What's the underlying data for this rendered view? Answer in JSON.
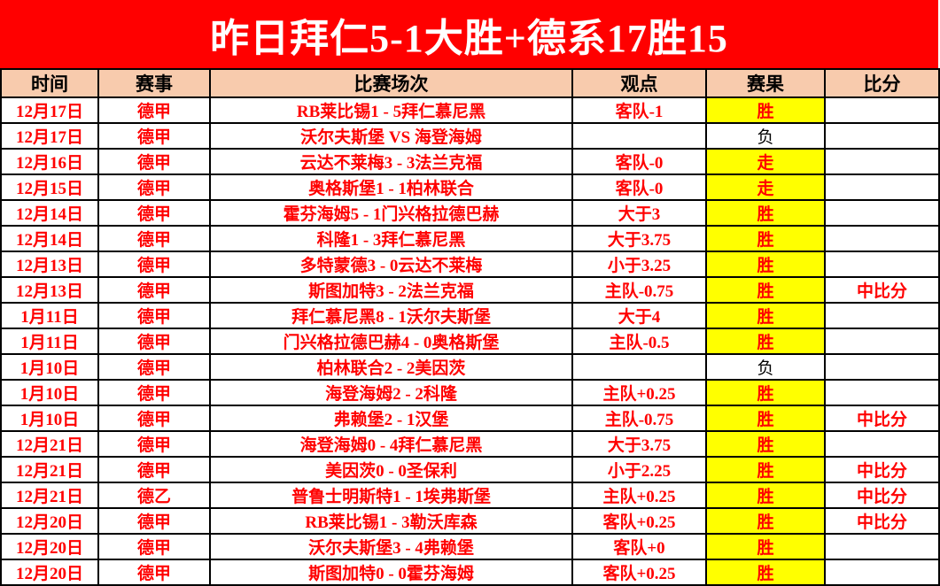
{
  "banner": {
    "title": "昨日拜仁5-1大胜+德系17胜15"
  },
  "colors": {
    "banner_bg": "#FF0000",
    "banner_text": "#FFFFFF",
    "header_bg": "#F8CBAD",
    "row_text": "#FF0000",
    "win_cell_bg": "#FFFF00",
    "loss_cell_text": "#000000",
    "grid_border": "#000000"
  },
  "table": {
    "headers": [
      "时间",
      "赛事",
      "比赛场次",
      "观点",
      "赛果",
      "比分"
    ],
    "rows": [
      {
        "date": "12月17日",
        "league": "德甲",
        "match": "RB莱比锡1 - 5拜仁慕尼黑",
        "view": "客队-1",
        "result": "胜",
        "highlight": true,
        "score": ""
      },
      {
        "date": "12月17日",
        "league": "德甲",
        "match": "沃尔夫斯堡 VS 海登海姆",
        "view": "",
        "result": "负",
        "highlight": false,
        "score": ""
      },
      {
        "date": "12月16日",
        "league": "德甲",
        "match": "云达不莱梅3 - 3法兰克福",
        "view": "客队-0",
        "result": "走",
        "highlight": true,
        "score": ""
      },
      {
        "date": "12月15日",
        "league": "德甲",
        "match": "奥格斯堡1 - 1柏林联合",
        "view": "客队-0",
        "result": "走",
        "highlight": true,
        "score": ""
      },
      {
        "date": "12月14日",
        "league": "德甲",
        "match": "霍芬海姆5 - 1门兴格拉德巴赫",
        "view": "大于3",
        "result": "胜",
        "highlight": true,
        "score": ""
      },
      {
        "date": "12月14日",
        "league": "德甲",
        "match": "科隆1 - 3拜仁慕尼黑",
        "view": "大于3.75",
        "result": "胜",
        "highlight": true,
        "score": ""
      },
      {
        "date": "12月13日",
        "league": "德甲",
        "match": "多特蒙德3 - 0云达不莱梅",
        "view": "小于3.25",
        "result": "胜",
        "highlight": true,
        "score": ""
      },
      {
        "date": "12月13日",
        "league": "德甲",
        "match": "斯图加特3 - 2法兰克福",
        "view": "主队-0.75",
        "result": "胜",
        "highlight": true,
        "score": "中比分"
      },
      {
        "date": "1月11日",
        "league": "德甲",
        "match": "拜仁慕尼黑8 - 1沃尔夫斯堡",
        "view": "大于4",
        "result": "胜",
        "highlight": true,
        "score": ""
      },
      {
        "date": "1月11日",
        "league": "德甲",
        "match": "门兴格拉德巴赫4 - 0奥格斯堡",
        "view": "主队-0.5",
        "result": "胜",
        "highlight": true,
        "score": ""
      },
      {
        "date": "1月10日",
        "league": "德甲",
        "match": "柏林联合2 - 2美因茨",
        "view": "",
        "result": "负",
        "highlight": false,
        "score": ""
      },
      {
        "date": "1月10日",
        "league": "德甲",
        "match": "海登海姆2 - 2科隆",
        "view": "主队+0.25",
        "result": "胜",
        "highlight": true,
        "score": ""
      },
      {
        "date": "1月10日",
        "league": "德甲",
        "match": "弗赖堡2 - 1汉堡",
        "view": "主队-0.75",
        "result": "胜",
        "highlight": true,
        "score": "中比分"
      },
      {
        "date": "12月21日",
        "league": "德甲",
        "match": "海登海姆0 - 4拜仁慕尼黑",
        "view": "大于3.75",
        "result": "胜",
        "highlight": true,
        "score": ""
      },
      {
        "date": "12月21日",
        "league": "德甲",
        "match": "美因茨0 - 0圣保利",
        "view": "小于2.25",
        "result": "胜",
        "highlight": true,
        "score": "中比分"
      },
      {
        "date": "12月21日",
        "league": "德乙",
        "match": "普鲁士明斯特1 - 1埃弗斯堡",
        "view": "主队+0.25",
        "result": "胜",
        "highlight": true,
        "score": "中比分"
      },
      {
        "date": "12月20日",
        "league": "德甲",
        "match": "RB莱比锡1 - 3勒沃库森",
        "view": "客队+0.25",
        "result": "胜",
        "highlight": true,
        "score": "中比分"
      },
      {
        "date": "12月20日",
        "league": "德甲",
        "match": "沃尔夫斯堡3 - 4弗赖堡",
        "view": "客队+0",
        "result": "胜",
        "highlight": true,
        "score": ""
      },
      {
        "date": "12月20日",
        "league": "德甲",
        "match": "斯图加特0 - 0霍芬海姆",
        "view": "客队+0.25",
        "result": "胜",
        "highlight": true,
        "score": ""
      }
    ]
  }
}
